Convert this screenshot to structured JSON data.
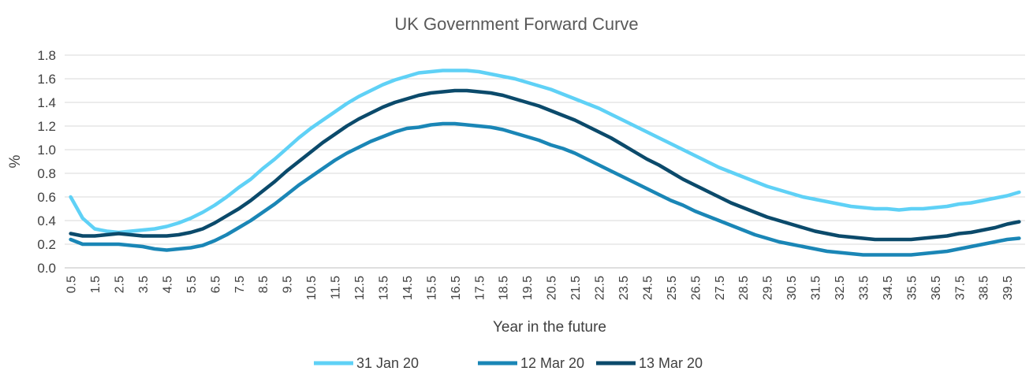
{
  "chart_data": {
    "type": "line",
    "title": "UK Government Forward Curve",
    "xlabel": "Year in the future",
    "ylabel": "%",
    "ylim": [
      0.0,
      1.8
    ],
    "ytick_step": 0.2,
    "yticks": [
      "0.0",
      "0.2",
      "0.4",
      "0.6",
      "0.8",
      "1.0",
      "1.2",
      "1.4",
      "1.6",
      "1.8"
    ],
    "grid": "horizontal",
    "legend_position": "bottom",
    "x": [
      0.5,
      1,
      1.5,
      2,
      2.5,
      3,
      3.5,
      4,
      4.5,
      5,
      5.5,
      6,
      6.5,
      7,
      7.5,
      8,
      8.5,
      9,
      9.5,
      10,
      10.5,
      11,
      11.5,
      12,
      12.5,
      13,
      13.5,
      14,
      14.5,
      15,
      15.5,
      16,
      16.5,
      17,
      17.5,
      18,
      18.5,
      19,
      19.5,
      20,
      20.5,
      21,
      21.5,
      22,
      22.5,
      23,
      23.5,
      24,
      24.5,
      25,
      25.5,
      26,
      26.5,
      27,
      27.5,
      28,
      28.5,
      29,
      29.5,
      30,
      30.5,
      31,
      31.5,
      32,
      32.5,
      33,
      33.5,
      34,
      34.5,
      35,
      35.5,
      36,
      36.5,
      37,
      37.5,
      38,
      38.5,
      39,
      39.5,
      40
    ],
    "x_tick_labels": [
      "0.5",
      "1.5",
      "2.5",
      "3.5",
      "4.5",
      "5.5",
      "6.5",
      "7.5",
      "8.5",
      "9.5",
      "10.5",
      "11.5",
      "12.5",
      "13.5",
      "14.5",
      "15.5",
      "16.5",
      "17.5",
      "18.5",
      "19.5",
      "20.5",
      "21.5",
      "22.5",
      "23.5",
      "24.5",
      "25.5",
      "26.5",
      "27.5",
      "28.5",
      "29.5",
      "30.5",
      "31.5",
      "32.5",
      "33.5",
      "34.5",
      "35.5",
      "36.5",
      "37.5",
      "38.5",
      "39.5"
    ],
    "series": [
      {
        "name": "31 Jan 20",
        "color": "#5fd1f6",
        "values": [
          0.6,
          0.42,
          0.33,
          0.31,
          0.3,
          0.31,
          0.32,
          0.33,
          0.35,
          0.38,
          0.42,
          0.47,
          0.53,
          0.6,
          0.68,
          0.75,
          0.84,
          0.92,
          1.01,
          1.1,
          1.18,
          1.25,
          1.32,
          1.39,
          1.45,
          1.5,
          1.55,
          1.59,
          1.62,
          1.65,
          1.66,
          1.67,
          1.67,
          1.67,
          1.66,
          1.64,
          1.62,
          1.6,
          1.57,
          1.54,
          1.51,
          1.47,
          1.43,
          1.39,
          1.35,
          1.3,
          1.25,
          1.2,
          1.15,
          1.1,
          1.05,
          1.0,
          0.95,
          0.9,
          0.85,
          0.81,
          0.77,
          0.73,
          0.69,
          0.66,
          0.63,
          0.6,
          0.58,
          0.56,
          0.54,
          0.52,
          0.51,
          0.5,
          0.5,
          0.49,
          0.5,
          0.5,
          0.51,
          0.52,
          0.54,
          0.55,
          0.57,
          0.59,
          0.61,
          0.64
        ]
      },
      {
        "name": "12 Mar 20",
        "color": "#1a86b6",
        "values": [
          0.24,
          0.2,
          0.2,
          0.2,
          0.2,
          0.19,
          0.18,
          0.16,
          0.15,
          0.16,
          0.17,
          0.19,
          0.23,
          0.28,
          0.34,
          0.4,
          0.47,
          0.54,
          0.62,
          0.7,
          0.77,
          0.84,
          0.91,
          0.97,
          1.02,
          1.07,
          1.11,
          1.15,
          1.18,
          1.19,
          1.21,
          1.22,
          1.22,
          1.21,
          1.2,
          1.19,
          1.17,
          1.14,
          1.11,
          1.08,
          1.04,
          1.01,
          0.97,
          0.92,
          0.87,
          0.82,
          0.77,
          0.72,
          0.67,
          0.62,
          0.57,
          0.53,
          0.48,
          0.44,
          0.4,
          0.36,
          0.32,
          0.28,
          0.25,
          0.22,
          0.2,
          0.18,
          0.16,
          0.14,
          0.13,
          0.12,
          0.11,
          0.11,
          0.11,
          0.11,
          0.11,
          0.12,
          0.13,
          0.14,
          0.16,
          0.18,
          0.2,
          0.22,
          0.24,
          0.25
        ]
      },
      {
        "name": "13 Mar 20",
        "color": "#0b4a6b",
        "values": [
          0.29,
          0.27,
          0.27,
          0.28,
          0.29,
          0.28,
          0.27,
          0.27,
          0.27,
          0.28,
          0.3,
          0.33,
          0.38,
          0.44,
          0.5,
          0.57,
          0.65,
          0.73,
          0.82,
          0.9,
          0.98,
          1.06,
          1.13,
          1.2,
          1.26,
          1.31,
          1.36,
          1.4,
          1.43,
          1.46,
          1.48,
          1.49,
          1.5,
          1.5,
          1.49,
          1.48,
          1.46,
          1.43,
          1.4,
          1.37,
          1.33,
          1.29,
          1.25,
          1.2,
          1.15,
          1.1,
          1.04,
          0.98,
          0.92,
          0.87,
          0.81,
          0.75,
          0.7,
          0.65,
          0.6,
          0.55,
          0.51,
          0.47,
          0.43,
          0.4,
          0.37,
          0.34,
          0.31,
          0.29,
          0.27,
          0.26,
          0.25,
          0.24,
          0.24,
          0.24,
          0.24,
          0.25,
          0.26,
          0.27,
          0.29,
          0.3,
          0.32,
          0.34,
          0.37,
          0.39
        ]
      }
    ]
  }
}
